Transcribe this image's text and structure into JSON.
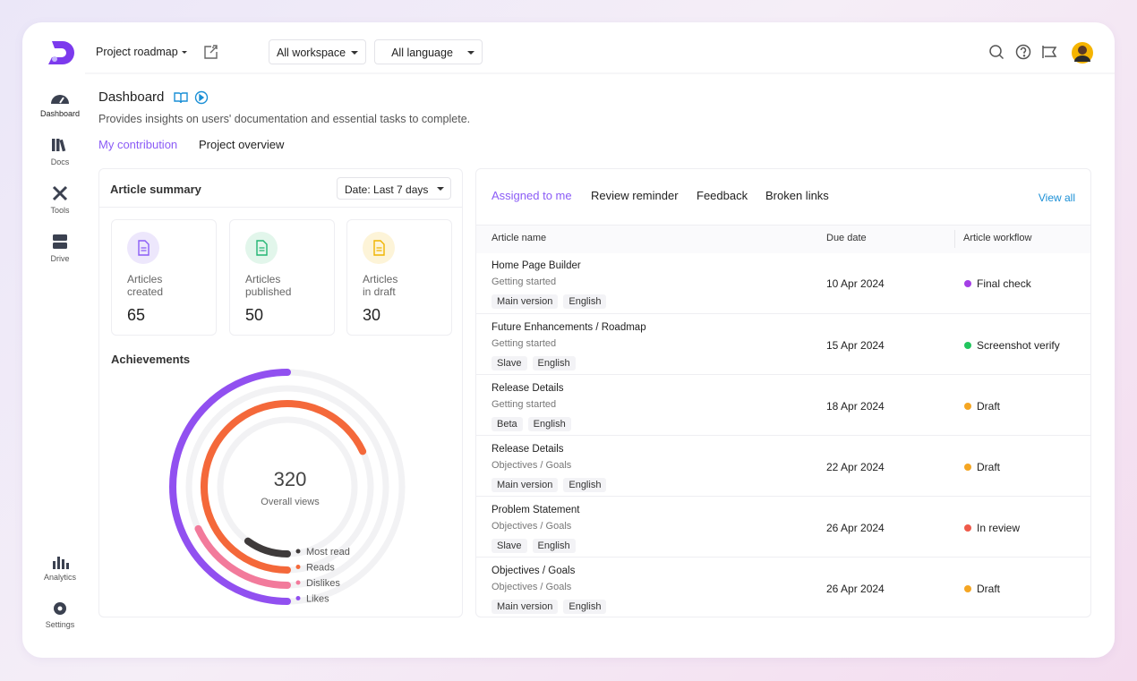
{
  "header": {
    "project": "Project roadmap",
    "workspace": "All workspace",
    "language": "All language"
  },
  "sidebar": {
    "items": [
      "Dashboard",
      "Docs",
      "Tools",
      "Drive"
    ],
    "bottom_items": [
      "Analytics",
      "Settings"
    ]
  },
  "page": {
    "title": "Dashboard",
    "description": "Provides insights on users' documentation and essential tasks to complete.",
    "tabs": [
      "My contribution",
      "Project overview"
    ]
  },
  "summary": {
    "title": "Article summary",
    "date_filter": "Date: Last 7 days",
    "cards": [
      {
        "label": [
          "Articles",
          "created"
        ],
        "value": "65"
      },
      {
        "label": [
          "Articles",
          "published"
        ],
        "value": "50"
      },
      {
        "label": [
          "Articles",
          "in draft"
        ],
        "value": "30"
      }
    ]
  },
  "chart_data": {
    "type": "radial-bar",
    "title": "Achievements",
    "center_value": "320",
    "center_label": "Overall views",
    "rlim": [
      0,
      100
    ],
    "series": [
      {
        "name": "Most read",
        "color": "#3f3b3b",
        "values": [
          10
        ]
      },
      {
        "name": "Reads",
        "color": "#f4683a",
        "values": [
          68
        ]
      },
      {
        "name": "Dislikes",
        "color": "#f27a9b",
        "values": [
          18
        ]
      },
      {
        "name": "Likes",
        "color": "#9150f0",
        "values": [
          50
        ]
      }
    ]
  },
  "tasks": {
    "tabs": [
      "Assigned to me",
      "Review reminder",
      "Feedback",
      "Broken links"
    ],
    "view_all": "View all",
    "columns": [
      "Article name",
      "Due date",
      "Article workflow"
    ],
    "rows": [
      {
        "name": "Home Page Builder",
        "category": "Getting started",
        "tags": [
          "Main version",
          "English"
        ],
        "due": "10 Apr 2024",
        "status": "Final check",
        "status_color": "#a43fe6"
      },
      {
        "name": "Future Enhancements / Roadmap",
        "category": "Getting started",
        "tags": [
          "Slave",
          "English"
        ],
        "due": "15 Apr 2024",
        "status": "Screenshot verify",
        "status_color": "#22c55e"
      },
      {
        "name": "Release Details",
        "category": "Getting started",
        "tags": [
          "Beta",
          "English"
        ],
        "due": "18 Apr 2024",
        "status": "Draft",
        "status_color": "#f5a623"
      },
      {
        "name": "Release Details",
        "category": "Objectives / Goals",
        "tags": [
          "Main version",
          "English"
        ],
        "due": "22 Apr 2024",
        "status": "Draft",
        "status_color": "#f5a623"
      },
      {
        "name": "Problem Statement",
        "category": "Objectives / Goals",
        "tags": [
          "Slave",
          "English"
        ],
        "due": "26 Apr 2024",
        "status": "In review",
        "status_color": "#ef5a4a"
      },
      {
        "name": "Objectives / Goals",
        "category": "Objectives / Goals",
        "tags": [
          "Main version",
          "English"
        ],
        "due": "26 Apr 2024",
        "status": "Draft",
        "status_color": "#f5a623"
      }
    ]
  }
}
